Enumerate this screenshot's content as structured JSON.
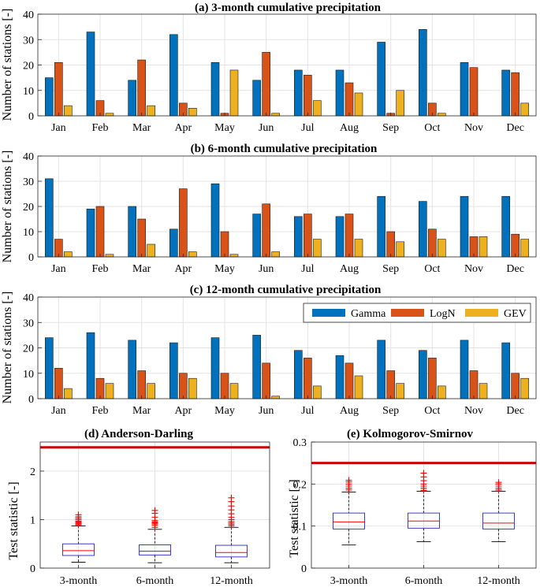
{
  "chart_data": [
    {
      "type": "bar",
      "title": "(a) 3-month cumulative precipitation",
      "ylabel": "Number of stations [-]",
      "ylim": [
        0,
        40
      ],
      "yticks": [
        0,
        10,
        20,
        30,
        40
      ],
      "categories": [
        "Jan",
        "Feb",
        "Mar",
        "Apr",
        "May",
        "Jun",
        "Jul",
        "Aug",
        "Sep",
        "Oct",
        "Nov",
        "Dec"
      ],
      "series": [
        {
          "name": "Gamma",
          "values": [
            15,
            33,
            14,
            32,
            21,
            14,
            18,
            18,
            29,
            34,
            21,
            18
          ]
        },
        {
          "name": "LogN",
          "values": [
            21,
            6,
            22,
            5,
            1,
            25,
            16,
            13,
            1,
            5,
            19,
            17
          ]
        },
        {
          "name": "GEV",
          "values": [
            4,
            1,
            4,
            3,
            18,
            1,
            6,
            9,
            10,
            1,
            0,
            5
          ]
        }
      ]
    },
    {
      "type": "bar",
      "title": "(b) 6-month cumulative precipitation",
      "ylabel": "Number of stations [-]",
      "ylim": [
        0,
        40
      ],
      "yticks": [
        0,
        10,
        20,
        30,
        40
      ],
      "categories": [
        "Jan",
        "Feb",
        "Mar",
        "Apr",
        "May",
        "Jun",
        "Jul",
        "Aug",
        "Sep",
        "Oct",
        "Nov",
        "Dec"
      ],
      "series": [
        {
          "name": "Gamma",
          "values": [
            31,
            19,
            20,
            11,
            29,
            17,
            16,
            16,
            24,
            22,
            24,
            24
          ]
        },
        {
          "name": "LogN",
          "values": [
            7,
            20,
            15,
            27,
            10,
            21,
            17,
            17,
            10,
            11,
            8,
            9
          ]
        },
        {
          "name": "GEV",
          "values": [
            2,
            1,
            5,
            2,
            1,
            2,
            7,
            7,
            6,
            7,
            8,
            7
          ]
        }
      ]
    },
    {
      "type": "bar",
      "title": "(c) 12-month cumulative precipitation",
      "ylabel": "Number of stations [-]",
      "ylim": [
        0,
        40
      ],
      "yticks": [
        0,
        10,
        20,
        30,
        40
      ],
      "categories": [
        "Jan",
        "Feb",
        "Mar",
        "Apr",
        "May",
        "Jun",
        "Jul",
        "Aug",
        "Sep",
        "Oct",
        "Nov",
        "Dec"
      ],
      "series": [
        {
          "name": "Gamma",
          "values": [
            24,
            26,
            23,
            22,
            24,
            25,
            19,
            17,
            23,
            19,
            23,
            22
          ]
        },
        {
          "name": "LogN",
          "values": [
            12,
            8,
            11,
            10,
            10,
            14,
            16,
            14,
            11,
            16,
            11,
            10
          ]
        },
        {
          "name": "GEV",
          "values": [
            4,
            6,
            6,
            8,
            6,
            1,
            5,
            9,
            6,
            5,
            6,
            8
          ]
        }
      ],
      "legend": {
        "entries": [
          "Gamma",
          "LogN",
          "GEV"
        ],
        "location": "top-right"
      }
    },
    {
      "type": "box",
      "title": "(d) Anderson-Darling",
      "ylabel": "Test statistic [-]",
      "ylim": [
        0,
        2.6
      ],
      "yticks": [
        0,
        1,
        2
      ],
      "yticklabels": [
        "0",
        "1",
        "2"
      ],
      "threshold": 2.49,
      "categories": [
        "3-month",
        "6-month",
        "12-month"
      ],
      "boxes": [
        {
          "whisker_low": 0.12,
          "q1": 0.26,
          "median": 0.36,
          "q3": 0.5,
          "whisker_high": 0.87,
          "outliers": [
            0.89,
            0.91,
            0.93,
            0.95,
            0.97,
            1.0,
            1.03,
            1.06,
            1.1
          ]
        },
        {
          "whisker_low": 0.11,
          "q1": 0.27,
          "median": 0.35,
          "q3": 0.48,
          "whisker_high": 0.8,
          "outliers": [
            0.84,
            0.88,
            0.91,
            0.93,
            0.95,
            0.98,
            1.05,
            1.13,
            1.19
          ]
        },
        {
          "whisker_low": 0.11,
          "q1": 0.23,
          "median": 0.32,
          "q3": 0.47,
          "whisker_high": 0.84,
          "outliers": [
            0.87,
            0.9,
            0.93,
            0.96,
            1.0,
            1.05,
            1.12,
            1.2,
            1.28,
            1.37,
            1.45
          ]
        }
      ]
    },
    {
      "type": "box",
      "title": "(e) Kolmogorov-Smirnov",
      "ylabel": "Test statistic [-]",
      "ylim": [
        0,
        0.3
      ],
      "yticks": [
        0,
        0.1,
        0.2,
        0.3
      ],
      "yticklabels": [
        "0",
        "0.1",
        "0.2",
        "0.3"
      ],
      "threshold": 0.25,
      "categories": [
        "3-month",
        "6-month",
        "12-month"
      ],
      "boxes": [
        {
          "whisker_low": 0.055,
          "q1": 0.093,
          "median": 0.11,
          "q3": 0.131,
          "whisker_high": 0.181,
          "outliers": [
            0.186,
            0.19,
            0.195,
            0.2,
            0.205,
            0.209
          ]
        },
        {
          "whisker_low": 0.063,
          "q1": 0.095,
          "median": 0.112,
          "q3": 0.131,
          "whisker_high": 0.183,
          "outliers": [
            0.185,
            0.19,
            0.195,
            0.2,
            0.208,
            0.217,
            0.226
          ]
        },
        {
          "whisker_low": 0.063,
          "q1": 0.093,
          "median": 0.107,
          "q3": 0.131,
          "whisker_high": 0.183,
          "outliers": [
            0.186,
            0.19,
            0.195,
            0.2,
            0.204
          ]
        }
      ]
    }
  ],
  "colors": {
    "Gamma": "#0072bd",
    "LogN": "#d95319",
    "GEV": "#edb120",
    "threshold": "#cc0000",
    "median": "#ff0000",
    "box": "#2828c8",
    "outlier": "#ff0000"
  }
}
